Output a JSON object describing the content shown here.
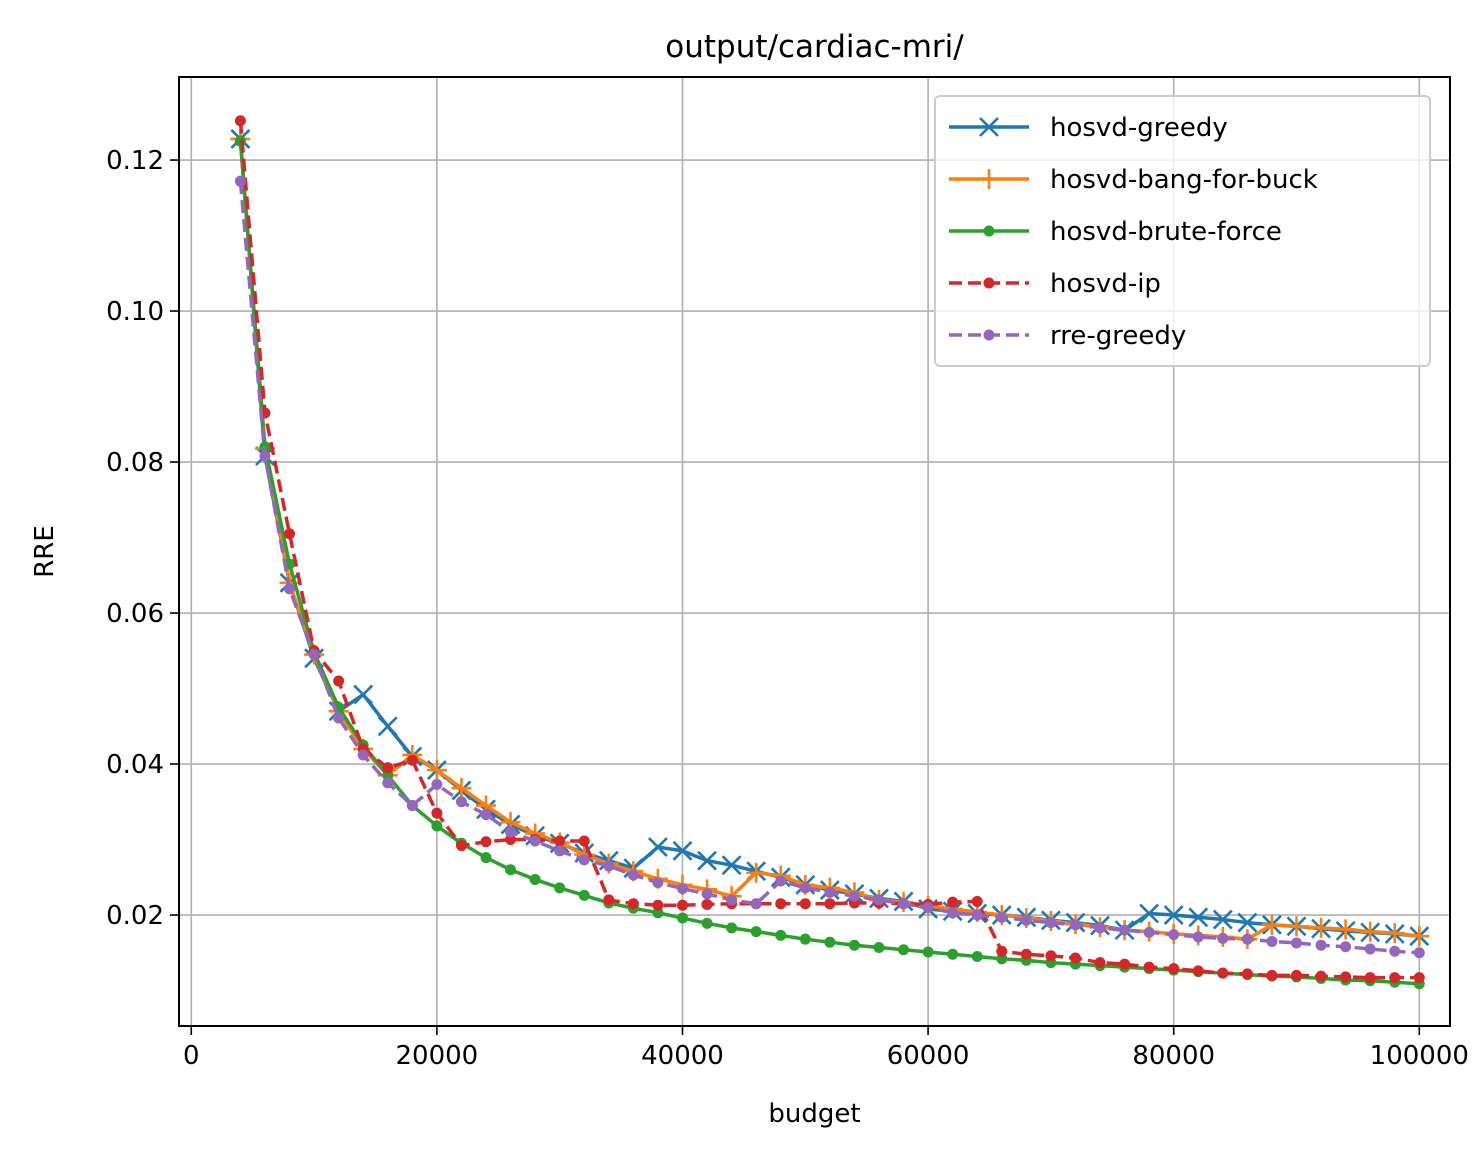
{
  "chart_data": {
    "type": "line",
    "title": "output/cardiac-mri/",
    "xlabel": "budget",
    "ylabel": "RRE",
    "xlim": [
      -1000,
      102500
    ],
    "ylim": [
      0.0053,
      0.131
    ],
    "xticks": [
      0,
      20000,
      40000,
      60000,
      80000,
      100000
    ],
    "xtick_labels": [
      "0",
      "20000",
      "40000",
      "60000",
      "80000",
      "100000"
    ],
    "yticks": [
      0.02,
      0.04,
      0.06,
      0.08,
      0.1,
      0.12
    ],
    "ytick_labels": [
      "0.02",
      "0.04",
      "0.06",
      "0.08",
      "0.10",
      "0.12"
    ],
    "grid": true,
    "legend_position": "top-right",
    "x": [
      4000,
      6000,
      8000,
      10000,
      12000,
      14000,
      16000,
      18000,
      20000,
      22000,
      24000,
      26000,
      28000,
      30000,
      32000,
      34000,
      36000,
      38000,
      40000,
      42000,
      44000,
      46000,
      48000,
      50000,
      52000,
      54000,
      56000,
      58000,
      60000,
      62000,
      64000,
      66000,
      68000,
      70000,
      72000,
      74000,
      76000,
      78000,
      80000,
      82000,
      84000,
      86000,
      88000,
      90000,
      92000,
      94000,
      96000,
      98000,
      100000
    ],
    "series": [
      {
        "name": "hosvd-greedy",
        "color": "#1f77b4",
        "marker": "x",
        "linestyle": "solid",
        "values": [
          0.1228,
          0.0808,
          0.064,
          0.054,
          0.047,
          0.0492,
          0.045,
          0.041,
          0.0392,
          0.0365,
          0.034,
          0.032,
          0.0305,
          0.0295,
          0.0282,
          0.0272,
          0.0262,
          0.029,
          0.0285,
          0.0272,
          0.0266,
          0.0258,
          0.025,
          0.024,
          0.0233,
          0.0228,
          0.0222,
          0.0218,
          0.0208,
          0.0205,
          0.0202,
          0.02,
          0.0197,
          0.0193,
          0.019,
          0.0186,
          0.018,
          0.0202,
          0.02,
          0.0197,
          0.0194,
          0.019,
          0.0187,
          0.0185,
          0.0182,
          0.0179,
          0.0177,
          0.0175,
          0.0172
        ]
      },
      {
        "name": "hosvd-bang-for-buck",
        "color": "#ff7f0e",
        "marker": "+",
        "linestyle": "solid",
        "values": [
          0.1228,
          0.0818,
          0.064,
          0.0545,
          0.047,
          0.042,
          0.0385,
          0.0412,
          0.0392,
          0.0368,
          0.0345,
          0.0323,
          0.0308,
          0.0296,
          0.028,
          0.0268,
          0.0258,
          0.0248,
          0.024,
          0.0234,
          0.0225,
          0.0256,
          0.0252,
          0.024,
          0.0236,
          0.023,
          0.022,
          0.0217,
          0.0212,
          0.0208,
          0.0204,
          0.02,
          0.0196,
          0.0192,
          0.0188,
          0.0184,
          0.018,
          0.0178,
          0.0175,
          0.0173,
          0.0171,
          0.0168,
          0.0187,
          0.0185,
          0.0183,
          0.0181,
          0.0178,
          0.0176,
          0.0172
        ]
      },
      {
        "name": "hosvd-brute-force",
        "color": "#2ca02c",
        "marker": "o",
        "linestyle": "solid",
        "values": [
          0.1225,
          0.082,
          0.0665,
          0.0548,
          0.0475,
          0.0425,
          0.0385,
          0.0345,
          0.0318,
          0.0295,
          0.0276,
          0.026,
          0.0247,
          0.0236,
          0.0226,
          0.0216,
          0.0209,
          0.0203,
          0.0196,
          0.0189,
          0.0183,
          0.0178,
          0.0173,
          0.0168,
          0.0164,
          0.016,
          0.0157,
          0.0154,
          0.0151,
          0.0148,
          0.0145,
          0.0142,
          0.014,
          0.0137,
          0.0135,
          0.0133,
          0.0131,
          0.0129,
          0.0127,
          0.0125,
          0.0123,
          0.0121,
          0.0119,
          0.0118,
          0.0116,
          0.0114,
          0.0113,
          0.0111,
          0.0109
        ]
      },
      {
        "name": "hosvd-ip",
        "color": "#d62728",
        "marker": "o",
        "linestyle": "dashed",
        "values": [
          0.1252,
          0.0865,
          0.0705,
          0.055,
          0.051,
          0.042,
          0.0395,
          0.0405,
          0.0335,
          0.0292,
          0.0297,
          0.03,
          0.03,
          0.0298,
          0.0298,
          0.022,
          0.0215,
          0.0213,
          0.0213,
          0.0214,
          0.0215,
          0.0215,
          0.0215,
          0.0215,
          0.0215,
          0.0216,
          0.0216,
          0.0215,
          0.0214,
          0.0217,
          0.0218,
          0.0152,
          0.0148,
          0.0146,
          0.0143,
          0.0137,
          0.0135,
          0.0131,
          0.0129,
          0.0126,
          0.0123,
          0.0122,
          0.012,
          0.012,
          0.0119,
          0.0118,
          0.0117,
          0.0117,
          0.0117
        ]
      },
      {
        "name": "rre-greedy",
        "color": "#9467bd",
        "marker": "o",
        "linestyle": "dashed",
        "values": [
          0.1172,
          0.0808,
          0.0632,
          0.0545,
          0.0461,
          0.0412,
          0.0375,
          0.0345,
          0.0373,
          0.035,
          0.0333,
          0.031,
          0.0298,
          0.0285,
          0.0273,
          0.0265,
          0.0253,
          0.0243,
          0.0235,
          0.0228,
          0.022,
          0.0215,
          0.0245,
          0.0236,
          0.023,
          0.0225,
          0.022,
          0.0215,
          0.021,
          0.0203,
          0.02,
          0.0197,
          0.0193,
          0.019,
          0.0187,
          0.0183,
          0.018,
          0.0177,
          0.0174,
          0.0171,
          0.0169,
          0.0168,
          0.0165,
          0.0163,
          0.016,
          0.0158,
          0.0155,
          0.0152,
          0.015
        ]
      }
    ]
  }
}
